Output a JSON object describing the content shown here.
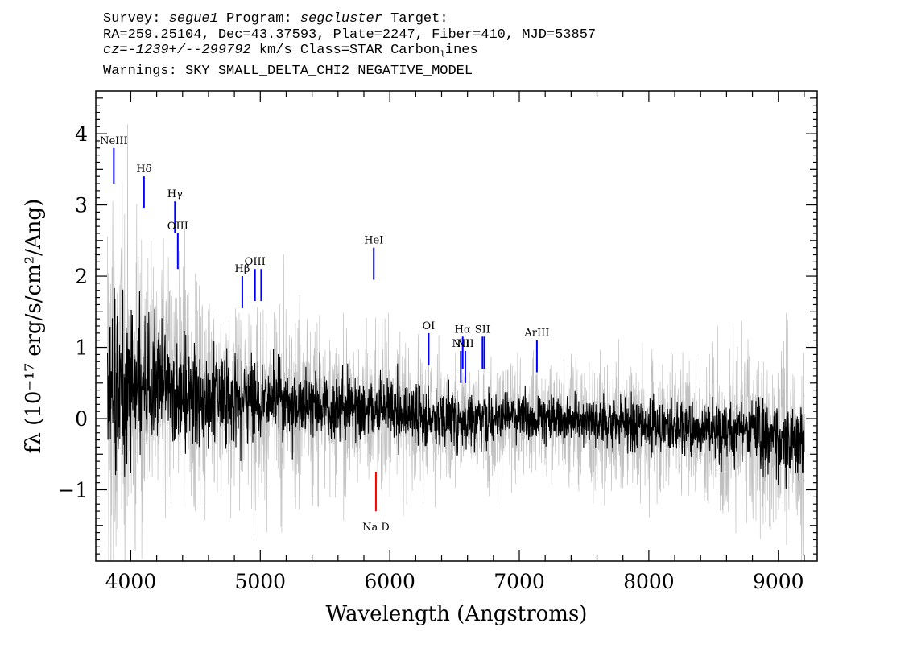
{
  "header": {
    "survey_label": "Survey: ",
    "survey_value": "segue1",
    "program_label": " Program: ",
    "program_value": "segcluster",
    "target_label": " Target:",
    "line2": "RA=259.25104, Dec=43.37593, Plate=2247, Fiber=410, MJD=53857",
    "cz_value": "cz=-1239+/--299792",
    "cz_rest": " km/s Class=STAR Carbon",
    "cz_sub": "l",
    "cz_tail": "ines",
    "warnings": "Warnings: SKY SMALL_DELTA_CHI2 NEGATIVE_MODEL"
  },
  "chart_data": {
    "type": "line",
    "xlabel": "Wavelength (Angstroms)",
    "ylabel": "fλ (10⁻¹⁷ erg/s/cm²/Ang)",
    "xlim": [
      3730,
      9300
    ],
    "ylim": [
      -2.0,
      4.6
    ],
    "x_ticks": [
      4000,
      5000,
      6000,
      7000,
      8000,
      9000
    ],
    "x_tick_labels": [
      "4000",
      "5000",
      "6000",
      "7000",
      "8000",
      "9000"
    ],
    "y_ticks": [
      -1,
      0,
      1,
      2,
      3,
      4
    ],
    "y_tick_labels": [
      "−1",
      "0",
      "1",
      "2",
      "3",
      "4"
    ],
    "grid": false,
    "series": [
      {
        "role": "error",
        "color": "#c0c0c0",
        "x": [
          3820,
          3900,
          4000,
          4100,
          4200,
          4300,
          4400,
          4500,
          4600,
          4700,
          4800,
          4900,
          5000,
          5200,
          5400,
          5600,
          5800,
          6000,
          6200,
          6400,
          6600,
          6800,
          7000,
          7200,
          7400,
          7600,
          7800,
          8000,
          8200,
          8400,
          8600,
          8800,
          9000,
          9200
        ],
        "y": [
          3.2,
          2.8,
          2.4,
          2.2,
          2.0,
          1.9,
          1.7,
          1.6,
          1.5,
          1.45,
          1.4,
          1.35,
          1.3,
          1.25,
          1.2,
          1.15,
          1.1,
          1.05,
          1.0,
          0.95,
          0.9,
          0.85,
          0.8,
          0.8,
          0.8,
          0.85,
          0.85,
          0.9,
          0.95,
          1.0,
          1.1,
          1.2,
          1.3,
          1.4
        ]
      },
      {
        "role": "flux",
        "color": "#000000",
        "x": [
          3820,
          3900,
          4000,
          4100,
          4200,
          4300,
          4400,
          4500,
          4600,
          4700,
          4800,
          4900,
          5000,
          5200,
          5400,
          5600,
          5800,
          6000,
          6200,
          6400,
          6600,
          6800,
          7000,
          7200,
          7400,
          7600,
          7800,
          8000,
          8200,
          8400,
          8600,
          8800,
          9000,
          9200
        ],
        "y": [
          0.3,
          0.4,
          0.5,
          0.5,
          0.45,
          0.4,
          0.4,
          0.35,
          0.3,
          0.3,
          0.3,
          0.3,
          0.25,
          0.2,
          0.2,
          0.15,
          0.15,
          0.1,
          0.05,
          0.0,
          0.0,
          0.0,
          0.0,
          0.0,
          0.0,
          -0.05,
          -0.1,
          -0.1,
          -0.1,
          -0.15,
          -0.15,
          -0.2,
          -0.3,
          -0.3
        ]
      }
    ],
    "emission_lines": [
      {
        "label": "NeIII",
        "x": 3869,
        "y0": 3.3,
        "y1": 3.8,
        "color": "#0000ff"
      },
      {
        "label": "Hδ",
        "x": 4102,
        "y0": 2.95,
        "y1": 3.4,
        "color": "#0000ff"
      },
      {
        "label": "Hγ",
        "x": 4341,
        "y0": 2.6,
        "y1": 3.05,
        "color": "#0000ff"
      },
      {
        "label": "OIII",
        "x": 4363,
        "y0": 2.1,
        "y1": 2.6,
        "color": "#0000ff"
      },
      {
        "label": "Hβ",
        "x": 4861,
        "y0": 1.55,
        "y1": 2.0,
        "color": "#0000ff"
      },
      {
        "label": "OIII",
        "x": 4959,
        "y0": 1.65,
        "y1": 2.1,
        "color": "#0000ff"
      },
      {
        "label": "",
        "x": 5007,
        "y0": 1.65,
        "y1": 2.1,
        "color": "#0000ff"
      },
      {
        "label": "HeI",
        "x": 5876,
        "y0": 1.95,
        "y1": 2.4,
        "color": "#0000ff"
      },
      {
        "label": "OI",
        "x": 6300,
        "y0": 0.75,
        "y1": 1.2,
        "color": "#0000ff"
      },
      {
        "label": "NII",
        "x": 6548,
        "y0": 0.5,
        "y1": 0.95,
        "color": "#0000ff"
      },
      {
        "label": "Hα",
        "x": 6563,
        "y0": 0.7,
        "y1": 1.15,
        "color": "#0000ff"
      },
      {
        "label": "NII",
        "x": 6583,
        "y0": 0.5,
        "y1": 0.95,
        "color": "#0000ff"
      },
      {
        "label": "SII",
        "x": 6716,
        "y0": 0.7,
        "y1": 1.15,
        "color": "#0000ff"
      },
      {
        "label": "",
        "x": 6731,
        "y0": 0.7,
        "y1": 1.15,
        "color": "#0000ff"
      },
      {
        "label": "ArIII",
        "x": 7136,
        "y0": 0.65,
        "y1": 1.1,
        "color": "#0000ff"
      }
    ],
    "absorption_lines": [
      {
        "label": "Na D",
        "x": 5893,
        "y0": -1.3,
        "y1": -0.75,
        "color": "#ff0000"
      }
    ]
  }
}
